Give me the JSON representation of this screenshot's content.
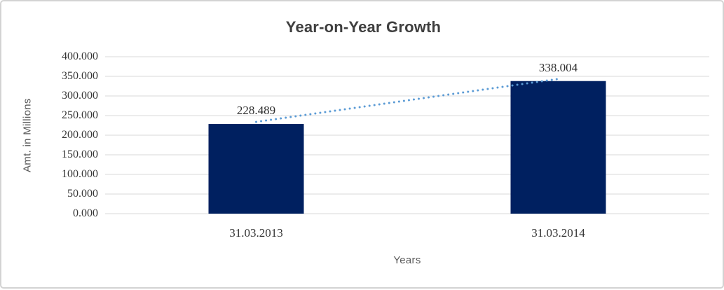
{
  "chart_data": {
    "type": "bar",
    "title": "Year-on-Year Growth",
    "xlabel": "Years",
    "ylabel": "Amt. in Millions",
    "categories": [
      "31.03.2013",
      "31.03.2014"
    ],
    "values": [
      228.489,
      338.004
    ],
    "value_labels": [
      "228.489",
      "338.004"
    ],
    "ylim": [
      0,
      400
    ],
    "ytick_step": 50,
    "ytick_labels": [
      "400.000",
      "350.000",
      "300.000",
      "250.000",
      "200.000",
      "150.000",
      "100.000",
      "50.000",
      "0.000"
    ],
    "grid": true,
    "legend": "none",
    "trendline": {
      "style": "dotted",
      "color": "#5b9bd5"
    },
    "colors": {
      "bar": "#002060",
      "gridline": "#d9d9d9",
      "tick_text": "#363636",
      "title_text": "#3f3f3f",
      "axis_title_text": "#595959"
    }
  }
}
